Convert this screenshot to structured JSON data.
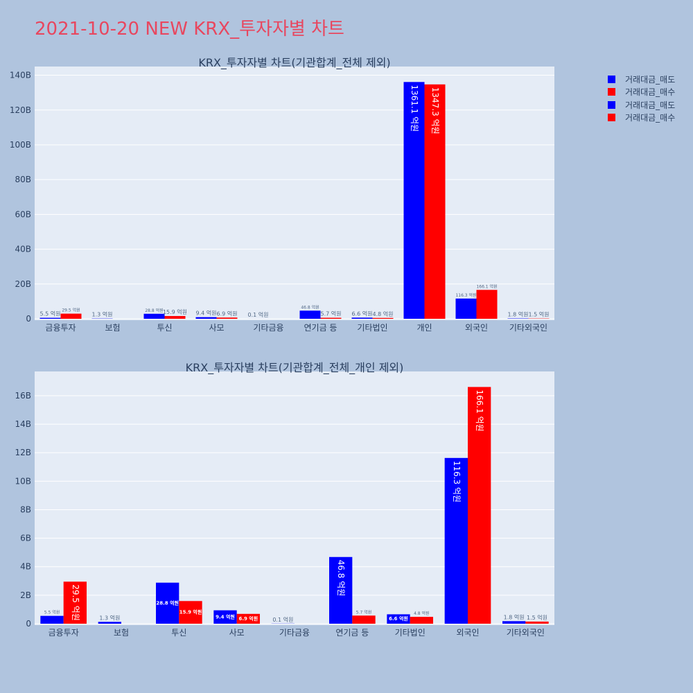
{
  "title": "2021-10-20 NEW KRX_투자자별 차트",
  "legend": [
    {
      "label": "거래대금_매도",
      "color": "#0000ff"
    },
    {
      "label": "거래대금_매수",
      "color": "#ff0000"
    },
    {
      "label": "거래대금_매도",
      "color": "#0000ff"
    },
    {
      "label": "거래대금_매수",
      "color": "#ff0000"
    }
  ],
  "chart_data": [
    {
      "type": "bar",
      "title": "KRX_투자자별 차트(기관합계_전체 제외)",
      "categories": [
        "금융투자",
        "보험",
        "투신",
        "사모",
        "기타금융",
        "연기금 등",
        "기타법인",
        "개인",
        "외국인",
        "기타외국인"
      ],
      "ylim": [
        0,
        145
      ],
      "yticks": [
        0,
        20,
        40,
        60,
        80,
        100,
        120,
        140
      ],
      "ytick_labels": [
        "0",
        "20B",
        "40B",
        "60B",
        "80B",
        "100B",
        "120B",
        "140B"
      ],
      "grid": true,
      "legend_position": "top-right",
      "series": [
        {
          "name": "거래대금_매도",
          "color": "#0000ff",
          "values": [
            0.55,
            0.13,
            2.88,
            0.94,
            0.01,
            4.68,
            0.66,
            136.11,
            11.63,
            0.18
          ],
          "labels": [
            "5.5 억원",
            "1.3 억원",
            "28.8 억원",
            "9.4 억원",
            "0.1 억원",
            "46.8 억원",
            "6.6 억원",
            "1361.1 억원",
            "116.3 억원",
            "1.8 억원"
          ]
        },
        {
          "name": "거래대금_매수",
          "color": "#ff0000",
          "values": [
            2.95,
            0,
            1.59,
            0.69,
            0,
            0.57,
            0.48,
            134.73,
            16.61,
            0.15
          ],
          "labels": [
            "29.5 억원",
            "",
            "15.9 억원",
            "6.9 억원",
            "",
            "5.7 억원",
            "4.8 억원",
            "1347.3 억원",
            "166.1 억원",
            "1.5 억원"
          ]
        }
      ]
    },
    {
      "type": "bar",
      "title": "KRX_투자자별 차트(기관합계_전체_개인 제외)",
      "categories": [
        "금융투자",
        "보험",
        "투신",
        "사모",
        "기타금융",
        "연기금 등",
        "기타법인",
        "외국인",
        "기타외국인"
      ],
      "ylim": [
        0,
        17.7
      ],
      "yticks": [
        0,
        2,
        4,
        6,
        8,
        10,
        12,
        14,
        16
      ],
      "ytick_labels": [
        "0",
        "2B",
        "4B",
        "6B",
        "8B",
        "10B",
        "12B",
        "14B",
        "16B"
      ],
      "grid": true,
      "series": [
        {
          "name": "거래대금_매도",
          "color": "#0000ff",
          "values": [
            0.55,
            0.13,
            2.88,
            0.94,
            0.01,
            4.68,
            0.66,
            11.63,
            0.18
          ],
          "labels": [
            "5.5 억원",
            "1.3 억원",
            "28.8 억원",
            "9.4 억원",
            "0.1 억원",
            "46.8 억원",
            "6.6 억원",
            "116.3 억원",
            "1.8 억원"
          ]
        },
        {
          "name": "거래대금_매수",
          "color": "#ff0000",
          "values": [
            2.95,
            0,
            1.59,
            0.69,
            0,
            0.57,
            0.48,
            16.61,
            0.15
          ],
          "labels": [
            "29.5 억원",
            "",
            "15.9 억원",
            "6.9 억원",
            "",
            "5.7 억원",
            "4.8 억원",
            "166.1 억원",
            "1.5 억원"
          ]
        }
      ]
    }
  ]
}
